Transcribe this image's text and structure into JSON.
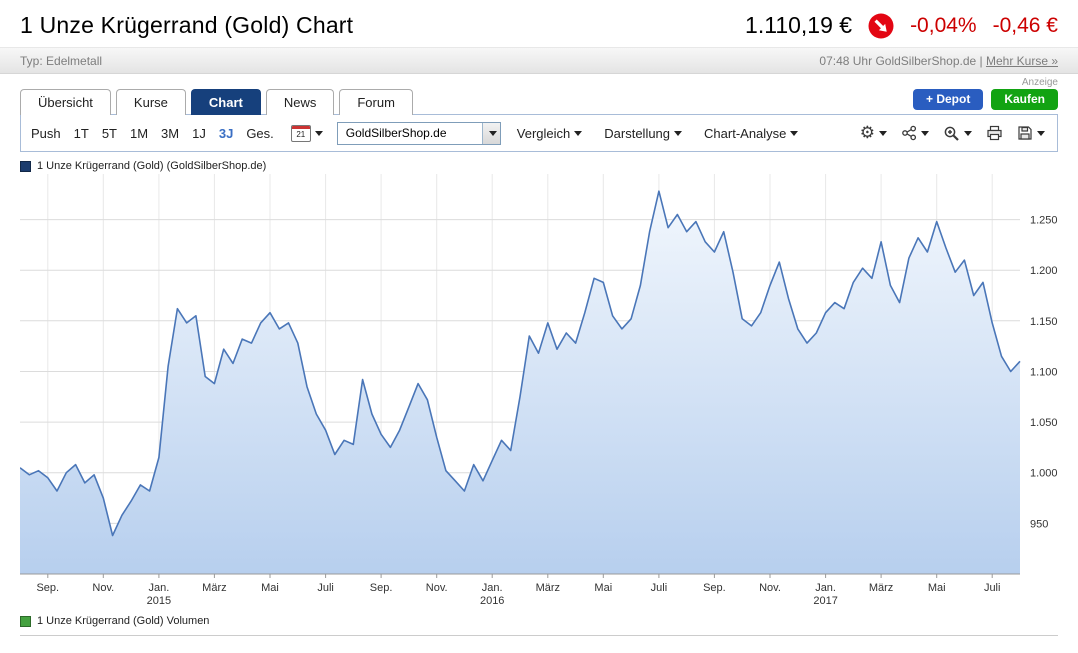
{
  "header": {
    "title": "1 Unze Krügerrand (Gold) Chart",
    "price": "1.110,19 €",
    "change_percent": "-0,04%",
    "change_absolute": "-0,46 €",
    "badge_color": "#e30613",
    "negative_color": "#cc0000",
    "type_label": "Typ: Edelmetall",
    "time_source": "07:48 Uhr GoldSilberShop.de |",
    "more_link": "Mehr Kurse »",
    "ad_label": "Anzeige"
  },
  "tabs": [
    {
      "label": "Übersicht",
      "active": false
    },
    {
      "label": "Kurse",
      "active": false
    },
    {
      "label": "Chart",
      "active": true
    },
    {
      "label": "News",
      "active": false
    },
    {
      "label": "Forum",
      "active": false
    }
  ],
  "actions": {
    "depot_label": "+ Depot",
    "depot_color": "#2a5dc0",
    "kaufen_label": "Kaufen",
    "kaufen_color": "#12a312"
  },
  "toolbar": {
    "ranges": [
      "Push",
      "1T",
      "5T",
      "1M",
      "3M",
      "1J",
      "3J",
      "Ges."
    ],
    "active_range": "3J",
    "calendar_label": "21",
    "source_select_value": "GoldSilberShop.de",
    "menus": [
      "Vergleich",
      "Darstellung",
      "Chart-Analyse"
    ],
    "icon_names": [
      "gear-icon",
      "indicators-icon",
      "zoom-in-icon",
      "print-icon",
      "save-icon"
    ]
  },
  "legends": {
    "price_series": "1 Unze Krügerrand (Gold) (GoldSilberShop.de)",
    "price_swatch_color": "#1b3c6e",
    "volume_series": "1 Unze Krügerrand (Gold) Volumen",
    "volume_swatch_color": "#44a13f"
  },
  "chart_data": {
    "type": "area",
    "title": "1 Unze Krügerrand (Gold) (GoldSilberShop.de)",
    "currency": "EUR",
    "period": "3J",
    "last_value": 1110.19,
    "line_color": "#4a76b8",
    "fill_top": "#f2f7fd",
    "fill_bottom": "#b7cfee",
    "grid": true,
    "legend_position": "top-left",
    "ylim": [
      900,
      1295
    ],
    "yticks": [
      {
        "value": 950,
        "label": "950"
      },
      {
        "value": 1000,
        "label": "1.000"
      },
      {
        "value": 1050,
        "label": "1.050"
      },
      {
        "value": 1100,
        "label": "1.100"
      },
      {
        "value": 1150,
        "label": "1.150"
      },
      {
        "value": 1200,
        "label": "1.200"
      },
      {
        "value": 1250,
        "label": "1.250"
      }
    ],
    "xticks": [
      {
        "pos": 0.0278,
        "label": "Sep."
      },
      {
        "pos": 0.0833,
        "label": "Nov."
      },
      {
        "pos": 0.1389,
        "label": "Jan.",
        "year": "2015"
      },
      {
        "pos": 0.1944,
        "label": "März"
      },
      {
        "pos": 0.25,
        "label": "Mai"
      },
      {
        "pos": 0.3056,
        "label": "Juli"
      },
      {
        "pos": 0.3611,
        "label": "Sep."
      },
      {
        "pos": 0.4167,
        "label": "Nov."
      },
      {
        "pos": 0.4722,
        "label": "Jan.",
        "year": "2016"
      },
      {
        "pos": 0.5278,
        "label": "März"
      },
      {
        "pos": 0.5833,
        "label": "Mai"
      },
      {
        "pos": 0.6389,
        "label": "Juli"
      },
      {
        "pos": 0.6944,
        "label": "Sep."
      },
      {
        "pos": 0.75,
        "label": "Nov."
      },
      {
        "pos": 0.8056,
        "label": "Jan.",
        "year": "2017"
      },
      {
        "pos": 0.8611,
        "label": "März"
      },
      {
        "pos": 0.9167,
        "label": "Mai"
      },
      {
        "pos": 0.9722,
        "label": "Juli"
      }
    ],
    "values": [
      1005,
      998,
      1002,
      995,
      982,
      1000,
      1008,
      990,
      998,
      975,
      938,
      958,
      972,
      988,
      982,
      1015,
      1105,
      1162,
      1148,
      1155,
      1095,
      1088,
      1122,
      1108,
      1132,
      1128,
      1148,
      1158,
      1142,
      1148,
      1128,
      1085,
      1058,
      1042,
      1018,
      1032,
      1028,
      1092,
      1058,
      1038,
      1025,
      1042,
      1065,
      1088,
      1072,
      1035,
      1002,
      992,
      982,
      1008,
      992,
      1012,
      1032,
      1022,
      1075,
      1135,
      1118,
      1148,
      1122,
      1138,
      1128,
      1158,
      1192,
      1188,
      1155,
      1142,
      1152,
      1185,
      1238,
      1278,
      1242,
      1255,
      1238,
      1248,
      1228,
      1218,
      1238,
      1198,
      1152,
      1145,
      1158,
      1185,
      1208,
      1172,
      1142,
      1128,
      1138,
      1158,
      1168,
      1162,
      1188,
      1202,
      1192,
      1228,
      1185,
      1168,
      1212,
      1232,
      1218,
      1248,
      1222,
      1198,
      1210,
      1175,
      1188,
      1148,
      1115,
      1100,
      1110
    ]
  }
}
